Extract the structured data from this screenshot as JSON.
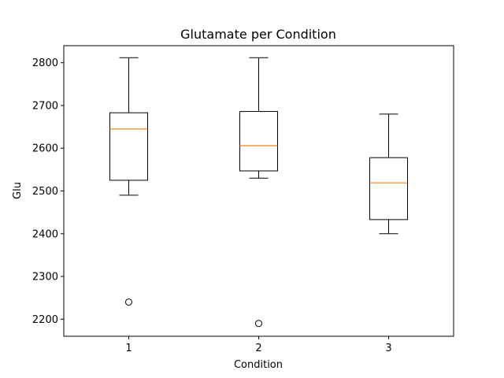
{
  "chart_data": {
    "type": "box",
    "title": "Glutamate per Condition",
    "xlabel": "Condition",
    "ylabel": "Glu",
    "categories": [
      "1",
      "2",
      "3"
    ],
    "ylim": [
      2160,
      2840
    ],
    "yticks": [
      2200,
      2300,
      2400,
      2500,
      2600,
      2700,
      2800
    ],
    "grid": false,
    "series": [
      {
        "category": "1",
        "whisker_low": 2490,
        "q1": 2525,
        "median": 2645,
        "q3": 2683,
        "whisker_high": 2812,
        "outliers": [
          2240
        ]
      },
      {
        "category": "2",
        "whisker_low": 2530,
        "q1": 2547,
        "median": 2606,
        "q3": 2686,
        "whisker_high": 2812,
        "outliers": [
          2190
        ]
      },
      {
        "category": "3",
        "whisker_low": 2400,
        "q1": 2433,
        "median": 2519,
        "q3": 2578,
        "whisker_high": 2680,
        "outliers": []
      }
    ],
    "colors": {
      "box": "#000000",
      "median": "#ff7f0e",
      "outlier": "#000000"
    }
  }
}
